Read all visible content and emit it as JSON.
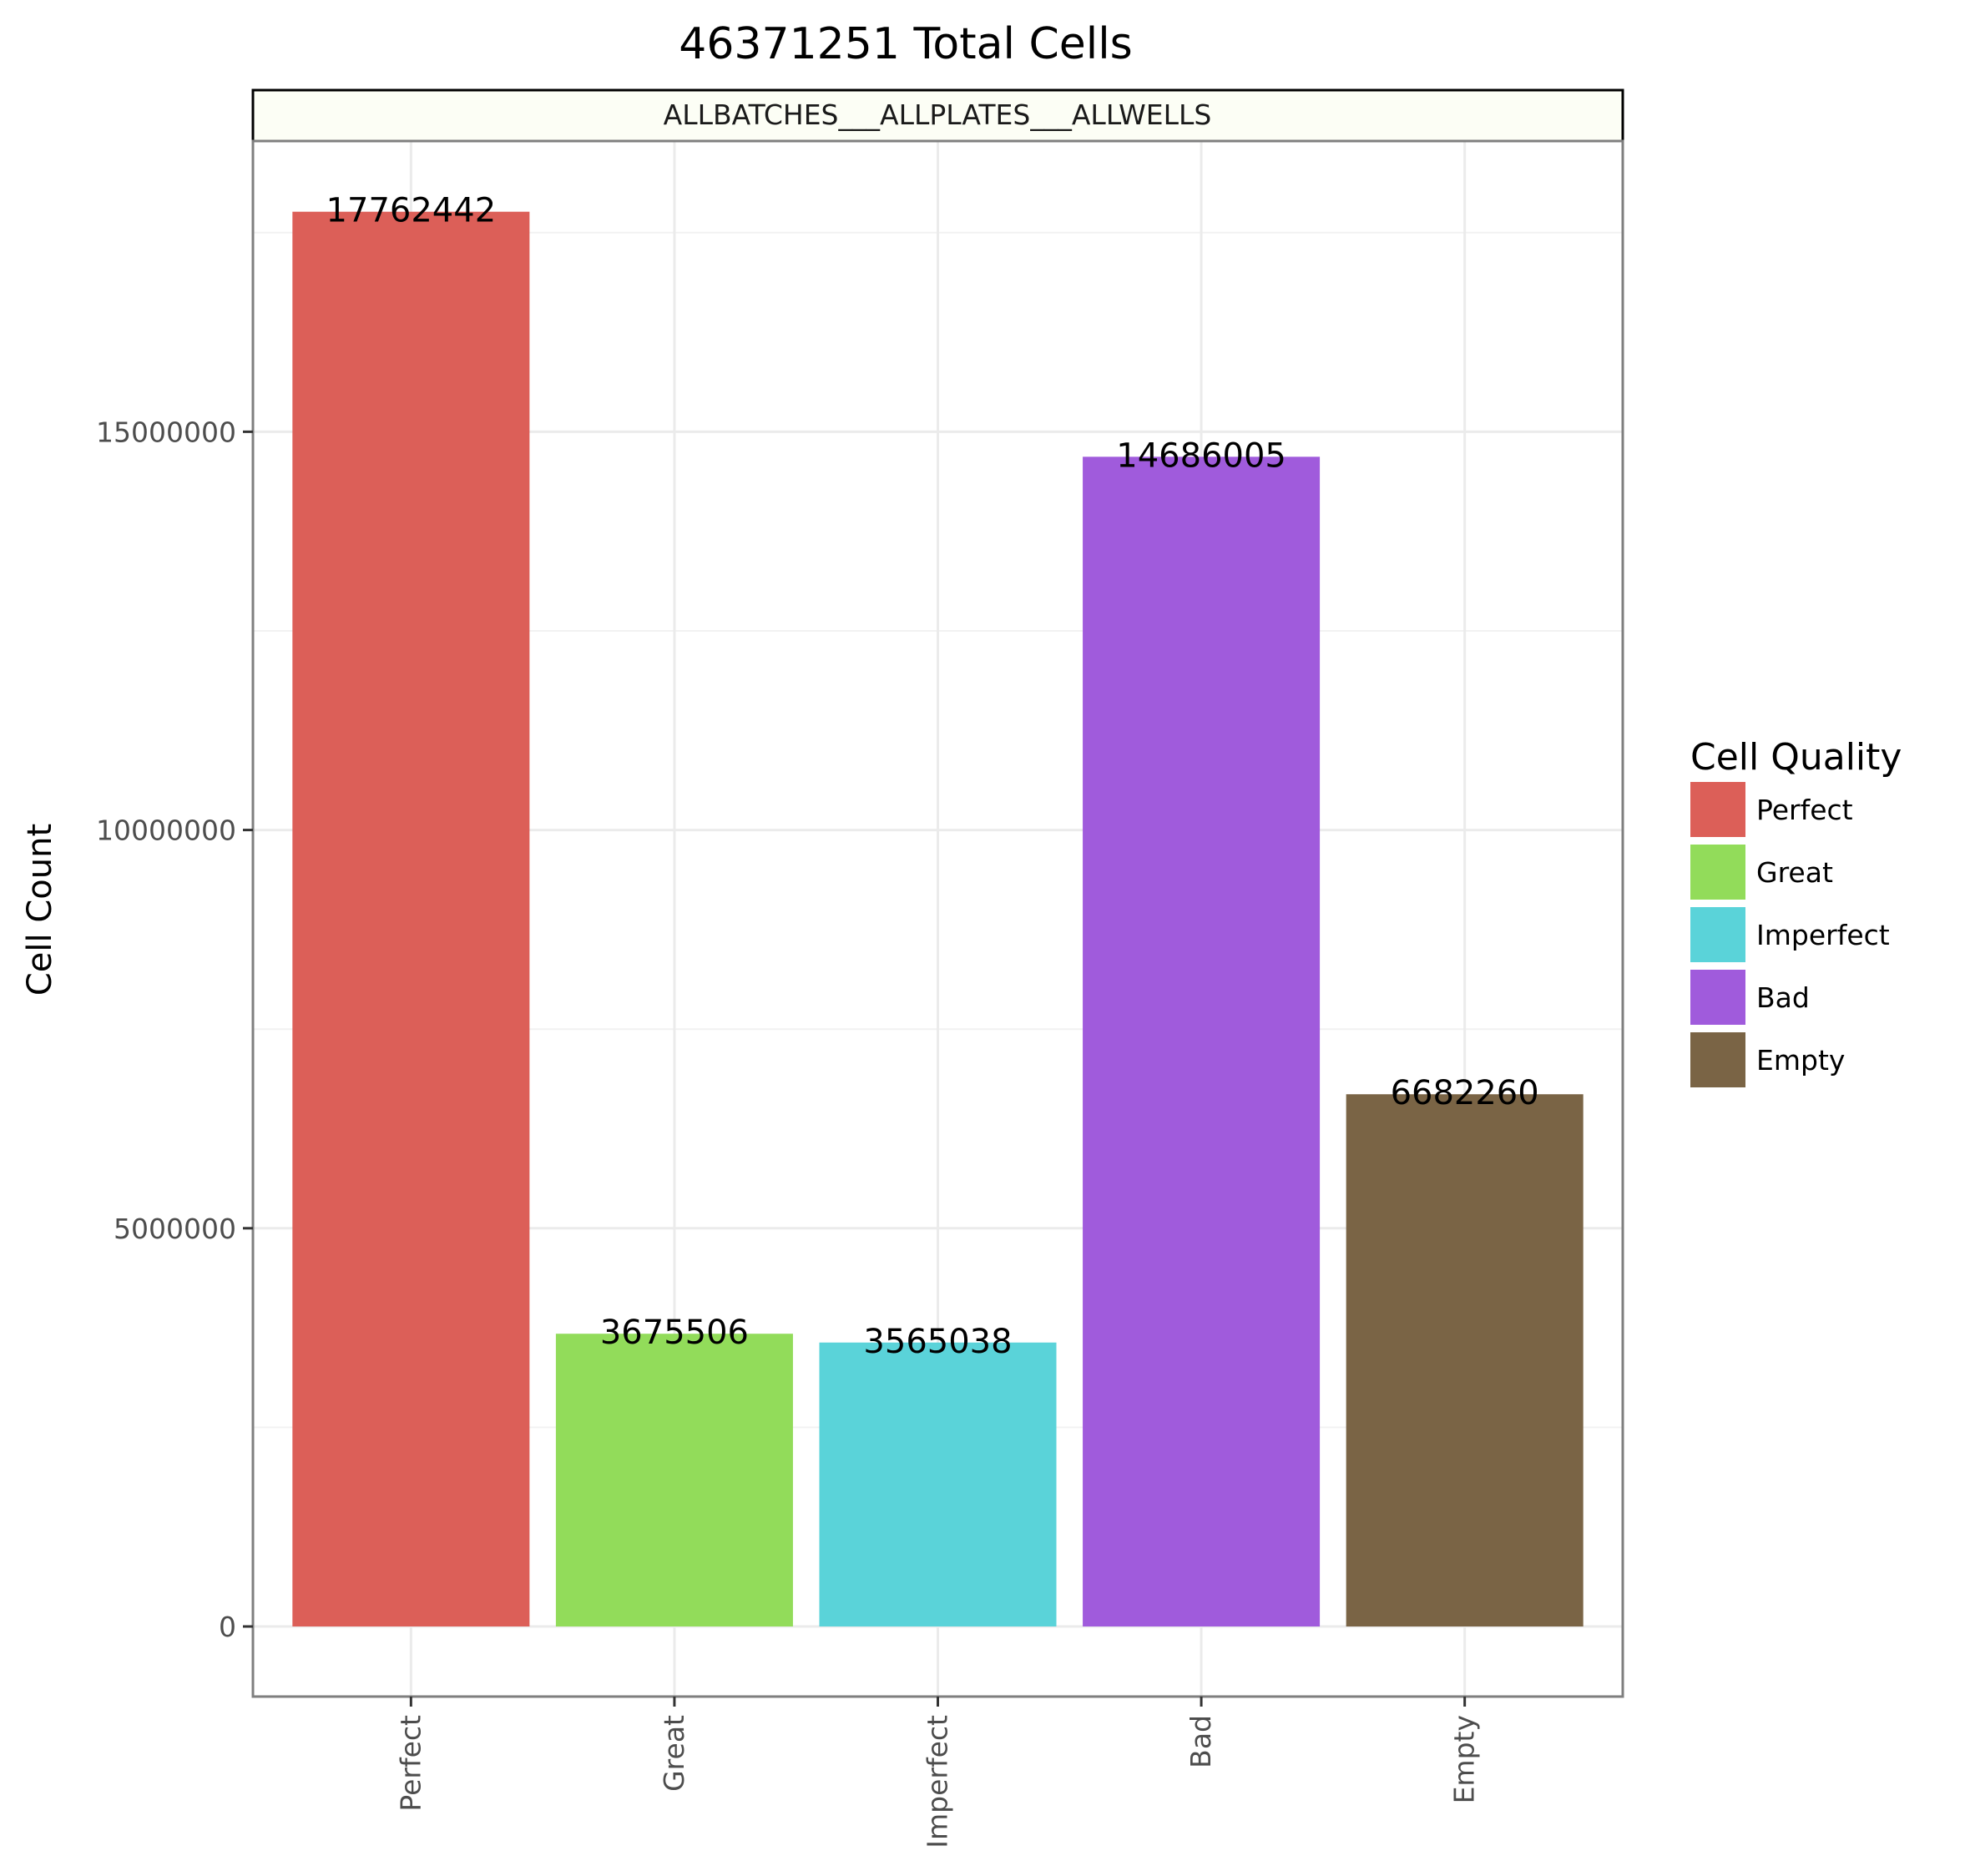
{
  "chart_data": {
    "type": "bar",
    "title": "46371251 Total Cells",
    "facet_label": "ALLBATCHES___ALLPLATES___ALLWELLS",
    "xlabel": "",
    "ylabel": "Cell Count",
    "categories": [
      "Perfect",
      "Great",
      "Imperfect",
      "Bad",
      "Empty"
    ],
    "values": [
      17762442,
      3675506,
      3565038,
      14686005,
      6682260
    ],
    "data_labels": [
      "17762442",
      "3675506",
      "3565038",
      "14686005",
      "6682260"
    ],
    "colors": [
      "#dc5f58",
      "#92dc5a",
      "#5ad3d9",
      "#a05bdc",
      "#7a6445"
    ],
    "yticks": [
      0,
      5000000,
      10000000,
      15000000
    ],
    "ytick_labels": [
      "0",
      "5000000",
      "10000000",
      "15000000"
    ],
    "ylim": [
      -880000,
      18650000
    ],
    "grid": true,
    "legend": {
      "title": "Cell Quality",
      "placement": "right",
      "entries": [
        "Perfect",
        "Great",
        "Imperfect",
        "Bad",
        "Empty"
      ]
    }
  }
}
